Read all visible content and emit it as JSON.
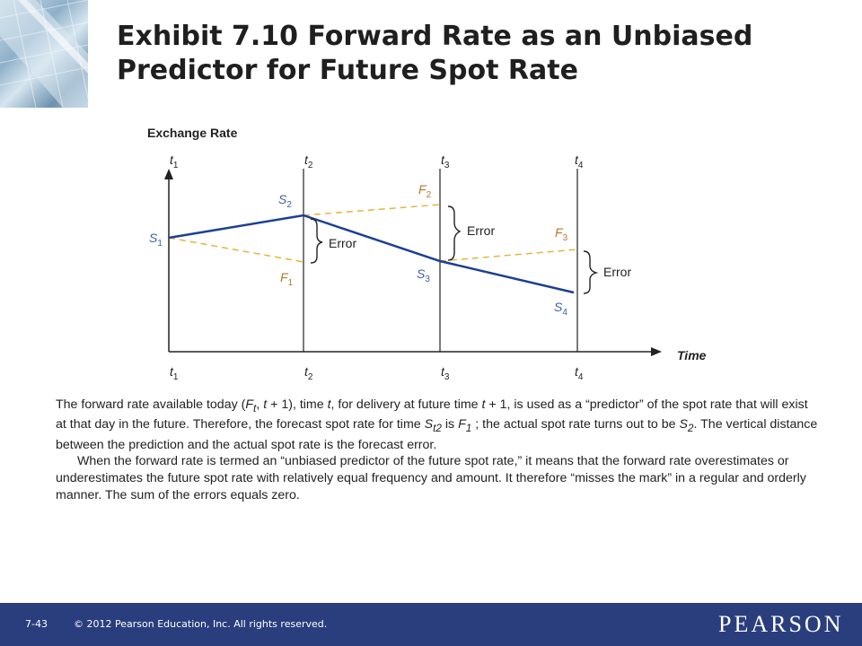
{
  "title": {
    "line1": "Exhibit 7.10  Forward Rate as an Unbiased",
    "line2": "Predictor for Future Spot Rate"
  },
  "diagram": {
    "y_axis_label": "Exchange Rate",
    "x_axis_label": "Time",
    "time_points": [
      {
        "base": "t",
        "sub": "1"
      },
      {
        "base": "t",
        "sub": "2"
      },
      {
        "base": "t",
        "sub": "3"
      },
      {
        "base": "t",
        "sub": "4"
      }
    ],
    "spot_rates": [
      {
        "base": "S",
        "sub": "1"
      },
      {
        "base": "S",
        "sub": "2"
      },
      {
        "base": "S",
        "sub": "3"
      },
      {
        "base": "S",
        "sub": "4"
      }
    ],
    "forward_rates": [
      {
        "base": "F",
        "sub": "1"
      },
      {
        "base": "F",
        "sub": "2"
      },
      {
        "base": "F",
        "sub": "3"
      }
    ],
    "error_labels": [
      "Error",
      "Error",
      "Error"
    ],
    "colors": {
      "spot_line": "#1c3f94",
      "forward_line": "#e8b33a",
      "label_blue": "#3a5fb0",
      "label_orange": "#b5772a",
      "axis": "#222222"
    }
  },
  "caption": {
    "p1_a": "The forward rate available today (",
    "p1_F": "F",
    "p1_t_sub": "t",
    "p1_b": ", ",
    "p1_t": "t",
    "p1_c": " + 1), time ",
    "p1_t2": "t",
    "p1_d": ", for delivery at future time ",
    "p1_t3": "t",
    "p1_e": " + 1, is used as a “predictor” of the spot rate that will exist at that day in the future. Therefore, the forecast spot rate for time ",
    "p1_S": "S",
    "p1_S_sub": "t2",
    "p1_f": " is ",
    "p1_F1": "F",
    "p1_F1_sub": "1",
    "p1_g": " ; the actual spot rate turns out to be ",
    "p1_S2": "S",
    "p1_S2_sub": "2",
    "p1_h": ". The vertical distance between the prediction and the actual spot rate is the forecast error.",
    "p2": "When the forward rate is termed an “unbiased predictor of the future spot rate,” it means that the forward rate overestimates or underestimates the future spot rate with relatively equal frequency and amount. It therefore “misses the mark” in a regular and orderly manner. The sum of the errors equals zero."
  },
  "footer": {
    "slide_number": "7-43",
    "copyright": "© 2012 Pearson Education, Inc. All rights reserved.",
    "logo": "PEARSON"
  }
}
